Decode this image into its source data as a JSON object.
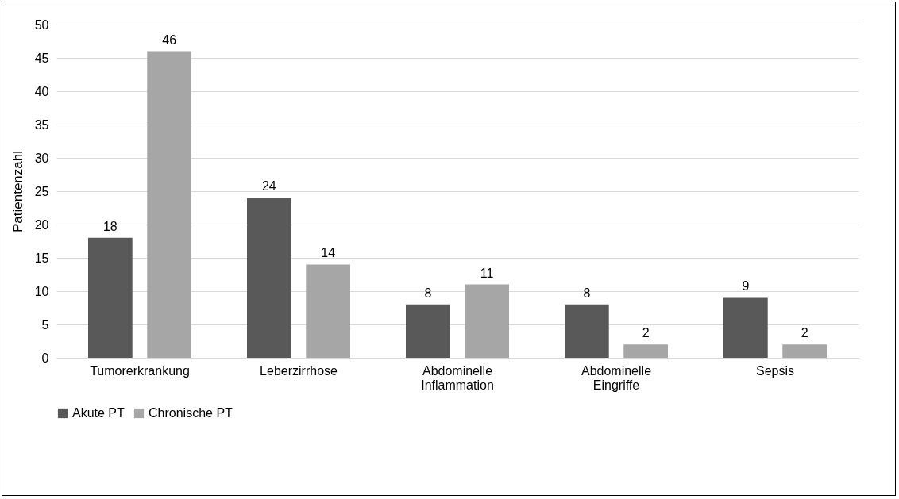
{
  "chart_data": {
    "type": "bar",
    "ylabel": "Patientenzahl",
    "categories": [
      "Tumorerkrankung",
      "Leberzirrhose",
      "Abdominelle Inflammation",
      "Abdominelle Eingriffe",
      "Sepsis"
    ],
    "series": [
      {
        "name": "Akute PT",
        "color": "#595959",
        "values": [
          18,
          24,
          8,
          8,
          9
        ]
      },
      {
        "name": "Chronische PT",
        "color": "#a6a6a6",
        "values": [
          46,
          14,
          11,
          2,
          2
        ]
      }
    ],
    "ylim": [
      0,
      50
    ],
    "yticks": [
      0,
      5,
      10,
      15,
      20,
      25,
      30,
      35,
      40,
      45,
      50
    ],
    "grid": "y",
    "legend": "bottom",
    "data_labels": true
  }
}
